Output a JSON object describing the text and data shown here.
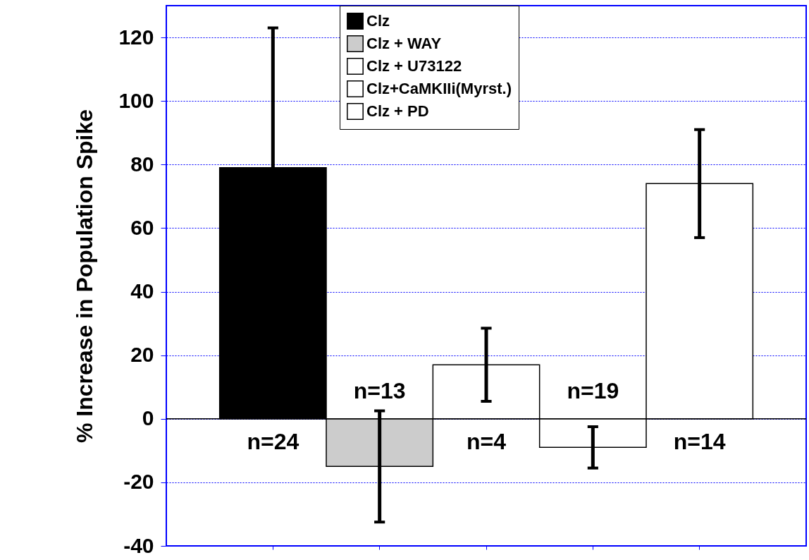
{
  "chart_data": {
    "type": "bar",
    "ylabel": "% Increase in Population Spike",
    "categories": [
      null,
      null,
      null,
      null,
      null
    ],
    "series": [
      {
        "name": "Clz",
        "color": "#000000",
        "values": [
          79,
          null,
          null,
          null,
          null
        ],
        "errors": [
          44,
          null,
          null,
          null,
          null
        ]
      },
      {
        "name": "Clz + WAY",
        "color": "#cccccc",
        "values": [
          null,
          -15,
          null,
          null,
          null
        ],
        "errors": [
          null,
          17.5,
          null,
          null,
          null
        ]
      },
      {
        "name": "Clz + U73122",
        "color": "#ffffff",
        "values": [
          null,
          null,
          17,
          null,
          null
        ],
        "errors": [
          null,
          null,
          11.5,
          null,
          null
        ]
      },
      {
        "name": "Clz+CaMKIIi(Myrst.)",
        "color": "#ffffff",
        "values": [
          null,
          null,
          null,
          -9,
          null
        ],
        "errors": [
          null,
          null,
          null,
          6.5,
          null
        ]
      },
      {
        "name": "Clz + PD",
        "color": "#ffffff",
        "values": [
          null,
          null,
          null,
          null,
          74
        ],
        "errors": [
          null,
          null,
          null,
          null,
          17
        ]
      }
    ],
    "annotations": [
      "n=24",
      "n=13",
      "n=4",
      "n=19",
      "n=14"
    ],
    "ref_lines": [
      {
        "axis": "y",
        "value": 0,
        "color": "#000000"
      }
    ],
    "ylim": [
      -40,
      130
    ],
    "yticks": [
      -40,
      -20,
      0,
      20,
      40,
      60,
      80,
      100,
      120
    ],
    "grid": "y",
    "legend": "top",
    "tick_labels": "y"
  }
}
